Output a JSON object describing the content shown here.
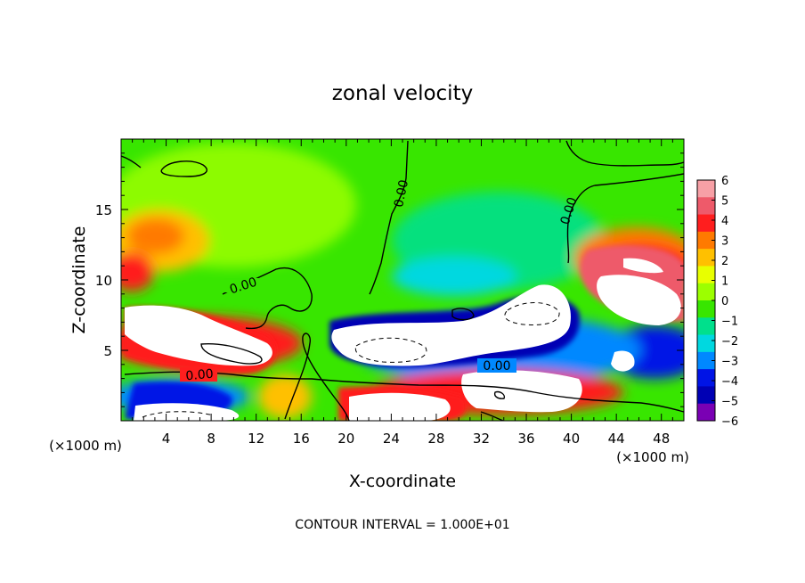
{
  "chart_data": {
    "type": "heatmap",
    "title": "zonal velocity",
    "xlabel": "X-coordinate",
    "ylabel": "Z-coordinate",
    "x_unit_label": "(×1000 m)",
    "x_unit_label_right": "(×1000 m)",
    "footer": "CONTOUR INTERVAL = 1.000E+01",
    "xlim": [
      0,
      50
    ],
    "ylim": [
      0,
      20
    ],
    "x_ticks": [
      "4",
      "8",
      "12",
      "16",
      "20",
      "24",
      "28",
      "32",
      "36",
      "40",
      "44",
      "48"
    ],
    "y_ticks": [
      "5",
      "10",
      "15"
    ],
    "colorbar": {
      "range": [
        -6,
        6
      ],
      "tick_labels": [
        "6",
        "5",
        "4",
        "3",
        "2",
        "1",
        "0",
        "−1",
        "−2",
        "−3",
        "−4",
        "−5",
        "−6"
      ],
      "colors": [
        "#f7a0a6",
        "#ee5a6a",
        "#ff1e1e",
        "#ff7a00",
        "#ffc000",
        "#e8ff00",
        "#9cff00",
        "#38e600",
        "#00e08c",
        "#00d8e0",
        "#0088ff",
        "#0014e6",
        "#0000b4",
        "#7a00b4"
      ]
    },
    "contour_labels": [
      "0.00",
      "0.00",
      "0.00",
      "0.00",
      "0.00"
    ],
    "saturation_color": "#ffffff"
  }
}
